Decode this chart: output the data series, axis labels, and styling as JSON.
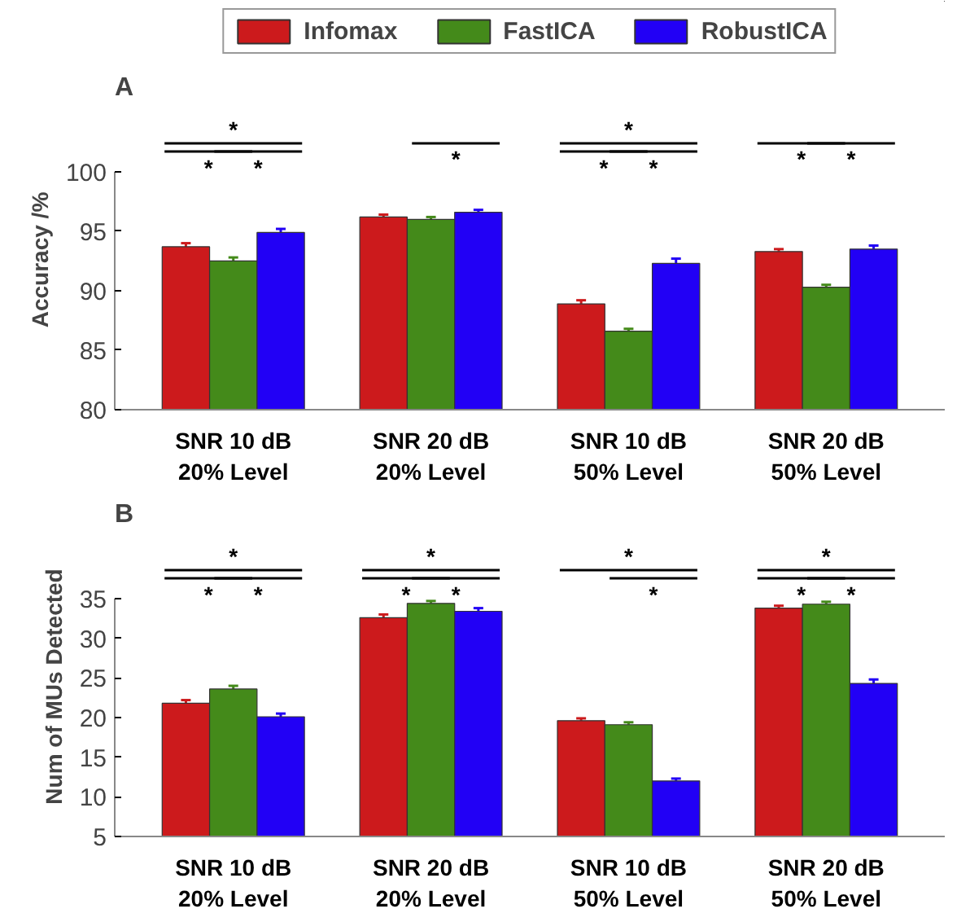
{
  "chart_data": [
    {
      "type": "bar",
      "title": "A",
      "ylabel": "Accuracy /%",
      "categories": [
        "SNR 10 dB\n20% Level",
        "SNR 20 dB\n20% Level",
        "SNR 10 dB\n50% Level",
        "SNR 20 dB\n50% Level"
      ],
      "series": [
        {
          "name": "Infomax",
          "color": "#cc1a1c",
          "values": [
            93.7,
            96.2,
            88.9,
            93.3
          ],
          "errors": [
            0.3,
            0.2,
            0.3,
            0.2
          ]
        },
        {
          "name": "FastICA",
          "color": "#448a1a",
          "values": [
            92.5,
            96.0,
            86.6,
            90.3
          ],
          "errors": [
            0.3,
            0.2,
            0.2,
            0.2
          ]
        },
        {
          "name": "RobustICA",
          "color": "#2200f5",
          "values": [
            94.9,
            96.6,
            92.3,
            93.5
          ],
          "errors": [
            0.3,
            0.2,
            0.4,
            0.3
          ]
        }
      ],
      "ylim": [
        80,
        100
      ],
      "yticks": [
        80,
        85,
        90,
        95,
        100
      ],
      "legend": "top",
      "annotations": [
        "*",
        "*",
        "*",
        "*",
        "*",
        "*",
        "*",
        "*",
        "*"
      ]
    },
    {
      "type": "bar",
      "title": "B",
      "ylabel": "Num of MUs Detected",
      "categories": [
        "SNR 10 dB\n20% Level",
        "SNR 20 dB\n20% Level",
        "SNR 10 dB\n50% Level",
        "SNR 20 dB\n50% Level"
      ],
      "series": [
        {
          "color": "#cc1a1c",
          "values": [
            21.8,
            32.6,
            19.6,
            33.8
          ],
          "errors": [
            0.4,
            0.4,
            0.3,
            0.3
          ]
        },
        {
          "color": "#448a1a",
          "values": [
            23.6,
            34.4,
            19.1,
            34.3
          ],
          "errors": [
            0.4,
            0.3,
            0.3,
            0.3
          ]
        },
        {
          "color": "#2200f5",
          "values": [
            20.1,
            33.4,
            12.0,
            24.3
          ],
          "errors": [
            0.4,
            0.4,
            0.3,
            0.5
          ]
        }
      ],
      "ylim": [
        5,
        35
      ],
      "yticks": [
        5,
        10,
        15,
        20,
        25,
        30,
        35
      ],
      "annotations": [
        "*",
        "*",
        "*",
        "*",
        "*",
        "*",
        "*",
        "*",
        "*",
        "*",
        "*"
      ]
    }
  ]
}
